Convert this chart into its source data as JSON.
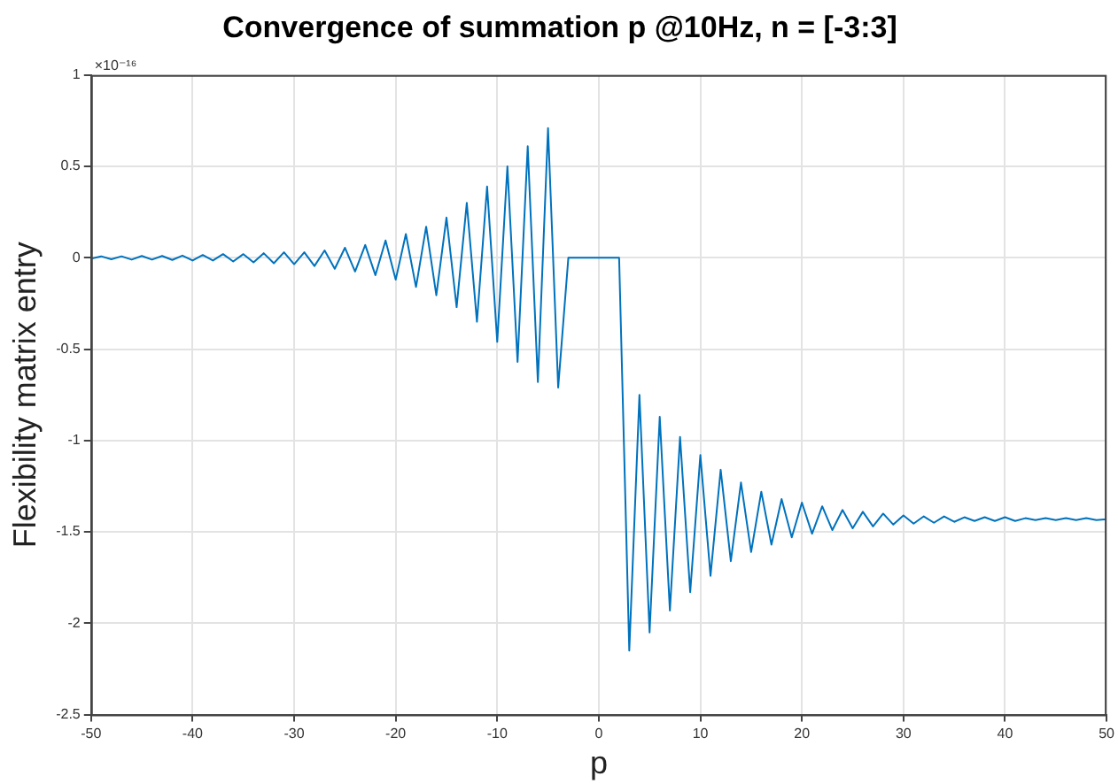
{
  "chart_data": {
    "type": "line",
    "title": "Convergence of summation p @10Hz, n = [-3:3]",
    "xlabel": "p",
    "ylabel": "Flexibility matrix entry",
    "annotations": [
      "×10⁻¹⁶"
    ],
    "x": [
      -50,
      -49,
      -48,
      -47,
      -46,
      -45,
      -44,
      -43,
      -42,
      -41,
      -40,
      -39,
      -38,
      -37,
      -36,
      -35,
      -34,
      -33,
      -32,
      -31,
      -30,
      -29,
      -28,
      -27,
      -26,
      -25,
      -24,
      -23,
      -22,
      -21,
      -20,
      -19,
      -18,
      -17,
      -16,
      -15,
      -14,
      -13,
      -12,
      -11,
      -10,
      -9,
      -8,
      -7,
      -6,
      -5,
      -4,
      -3,
      -2,
      -1,
      0,
      1,
      2,
      3,
      4,
      5,
      6,
      7,
      8,
      9,
      10,
      11,
      12,
      13,
      14,
      15,
      16,
      17,
      18,
      19,
      20,
      21,
      22,
      23,
      24,
      25,
      26,
      27,
      28,
      29,
      30,
      31,
      32,
      33,
      34,
      35,
      36,
      37,
      38,
      39,
      40,
      41,
      42,
      43,
      44,
      45,
      46,
      47,
      48,
      49,
      50
    ],
    "series": [
      {
        "color": "#0072bd",
        "values": [
          -0.005,
          0.008,
          -0.008,
          0.008,
          -0.01,
          0.01,
          -0.01,
          0.01,
          -0.012,
          0.012,
          -0.015,
          0.015,
          -0.015,
          0.02,
          -0.02,
          0.02,
          -0.025,
          0.025,
          -0.03,
          0.03,
          -0.035,
          0.03,
          -0.045,
          0.04,
          -0.06,
          0.055,
          -0.075,
          0.07,
          -0.095,
          0.095,
          -0.12,
          0.13,
          -0.16,
          0.17,
          -0.205,
          0.22,
          -0.27,
          0.3,
          -0.35,
          0.39,
          -0.46,
          0.5,
          -0.57,
          0.61,
          -0.68,
          0.71,
          -0.71,
          0,
          0,
          0,
          0,
          0,
          0,
          -2.15,
          -0.75,
          -2.05,
          -0.87,
          -1.93,
          -0.98,
          -1.83,
          -1.08,
          -1.74,
          -1.16,
          -1.66,
          -1.23,
          -1.61,
          -1.28,
          -1.57,
          -1.32,
          -1.53,
          -1.34,
          -1.51,
          -1.36,
          -1.49,
          -1.38,
          -1.48,
          -1.39,
          -1.47,
          -1.4,
          -1.46,
          -1.41,
          -1.455,
          -1.415,
          -1.45,
          -1.415,
          -1.445,
          -1.42,
          -1.44,
          -1.42,
          -1.44,
          -1.42,
          -1.44,
          -1.425,
          -1.435,
          -1.425,
          -1.435,
          -1.425,
          -1.435,
          -1.425,
          -1.435,
          -1.43
        ]
      }
    ],
    "xlim": [
      -50,
      50
    ],
    "xticks": [
      -50,
      -40,
      -30,
      -20,
      -10,
      0,
      10,
      20,
      30,
      40,
      50
    ],
    "ylim": [
      -2.5,
      1
    ],
    "yticks": [
      -2.5,
      -2,
      -1.5,
      -1,
      -0.5,
      0,
      0.5,
      1
    ],
    "grid": true,
    "legend": false,
    "marker": "none",
    "line_style": "solid"
  }
}
